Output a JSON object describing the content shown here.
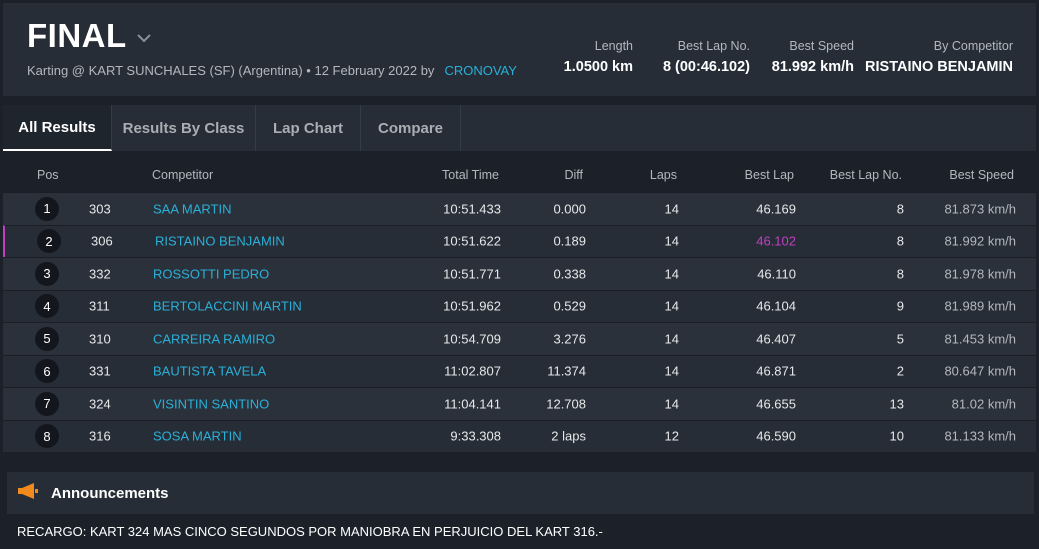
{
  "header": {
    "title": "FINAL",
    "subtitle": "Karting @ KART SUNCHALES (SF) (Argentina) • 12 February 2022 by",
    "timing_link": "CRONOVAY",
    "stats": [
      {
        "label": "Length",
        "value": "1.0500 km"
      },
      {
        "label": "Best Lap No.",
        "value": "8 (00:46.102)"
      },
      {
        "label": "Best Speed",
        "value": "81.992 km/h"
      },
      {
        "label": "By Competitor",
        "value": "RISTAINO BENJAMIN"
      }
    ]
  },
  "tabs": [
    "All Results",
    "Results By Class",
    "Lap Chart",
    "Compare"
  ],
  "table": {
    "columns": [
      "Pos",
      "Competitor",
      "Total Time",
      "Diff",
      "Laps",
      "Best Lap",
      "Best Lap No.",
      "Best Speed"
    ],
    "rows": [
      {
        "pos": "1",
        "num": "303",
        "name": "SAA MARTIN",
        "total": "10:51.433",
        "diff": "0.000",
        "laps": "14",
        "best": "46.169",
        "bestno": "8",
        "speed": "81.873 km/h"
      },
      {
        "pos": "2",
        "num": "306",
        "name": "RISTAINO BENJAMIN",
        "total": "10:51.622",
        "diff": "0.189",
        "laps": "14",
        "best": "46.102",
        "bestno": "8",
        "speed": "81.992 km/h"
      },
      {
        "pos": "3",
        "num": "332",
        "name": "ROSSOTTI PEDRO",
        "total": "10:51.771",
        "diff": "0.338",
        "laps": "14",
        "best": "46.110",
        "bestno": "8",
        "speed": "81.978 km/h"
      },
      {
        "pos": "4",
        "num": "311",
        "name": "BERTOLACCINI MARTIN",
        "total": "10:51.962",
        "diff": "0.529",
        "laps": "14",
        "best": "46.104",
        "bestno": "9",
        "speed": "81.989 km/h"
      },
      {
        "pos": "5",
        "num": "310",
        "name": "CARREIRA RAMIRO",
        "total": "10:54.709",
        "diff": "3.276",
        "laps": "14",
        "best": "46.407",
        "bestno": "5",
        "speed": "81.453 km/h"
      },
      {
        "pos": "6",
        "num": "331",
        "name": "BAUTISTA TAVELA",
        "total": "11:02.807",
        "diff": "11.374",
        "laps": "14",
        "best": "46.871",
        "bestno": "2",
        "speed": "80.647 km/h"
      },
      {
        "pos": "7",
        "num": "324",
        "name": "VISINTIN SANTINO",
        "total": "11:04.141",
        "diff": "12.708",
        "laps": "14",
        "best": "46.655",
        "bestno": "13",
        "speed": "81.02 km/h"
      },
      {
        "pos": "8",
        "num": "316",
        "name": "SOSA MARTIN",
        "total": "9:33.308",
        "diff": "2 laps",
        "laps": "12",
        "best": "46.590",
        "bestno": "10",
        "speed": "81.133 km/h"
      }
    ]
  },
  "announcements": {
    "title": "Announcements",
    "text": "RECARGO: KART 324 MAS CINCO SEGUNDOS POR MANIOBRA EN PERJUICIO DEL KART 316.-"
  },
  "colors": {
    "accent_link": "#2ab0d8",
    "best_lap_highlight": "#c040c0",
    "announcement_icon": "#f08a1c"
  },
  "icons": {
    "title_dropdown": "chevron-down-icon",
    "announcements": "megaphone-icon"
  }
}
